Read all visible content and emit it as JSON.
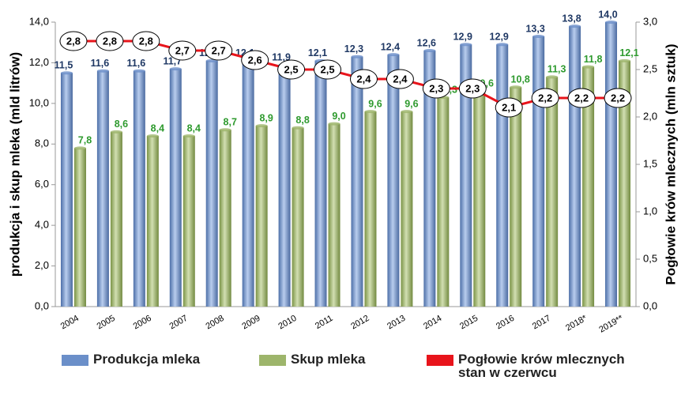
{
  "chart_data": {
    "type": "bar_line",
    "categories": [
      "2004",
      "2005",
      "2006",
      "2007",
      "2008",
      "2009",
      "2010",
      "2011",
      "2012",
      "2013",
      "2014",
      "2015",
      "2016",
      "2017",
      "2018*",
      "2019**"
    ],
    "series": [
      {
        "name": "Produkcja mleka",
        "color": "#6b8fc9",
        "type": "bar",
        "values": [
          11.5,
          11.6,
          11.6,
          11.7,
          12.1,
          12.1,
          11.9,
          12.1,
          12.3,
          12.4,
          12.6,
          12.9,
          12.9,
          13.3,
          13.8,
          14.0
        ],
        "value_labels": [
          "11,5",
          "11,6",
          "11,6",
          "11,7",
          "12,1",
          "12,1",
          "11,9",
          "12,1",
          "12,3",
          "12,4",
          "12,6",
          "12,9",
          "12,9",
          "13,3",
          "13,8",
          "14,0"
        ]
      },
      {
        "name": "Skup mleka",
        "color": "#9db56b",
        "type": "bar",
        "values": [
          7.8,
          8.6,
          8.4,
          8.4,
          8.7,
          8.9,
          8.8,
          9.0,
          9.6,
          9.6,
          10.3,
          10.6,
          10.8,
          11.3,
          11.8,
          12.1
        ],
        "value_labels": [
          "7,8",
          "8,6",
          "8,4",
          "8,4",
          "8,7",
          "8,9",
          "8,8",
          "9,0",
          "9,6",
          "9,6",
          "10,3",
          "10,6",
          "10,8",
          "11,3",
          "11,8",
          "12,1"
        ]
      },
      {
        "name": "Pogłowie krów mlecznych stan w czerwcu",
        "color": "#e8141b",
        "type": "line",
        "axis": "y2",
        "values": [
          2.8,
          2.8,
          2.8,
          2.7,
          2.7,
          2.6,
          2.5,
          2.5,
          2.4,
          2.4,
          2.3,
          2.3,
          2.1,
          2.2,
          2.2,
          2.2
        ],
        "value_labels": [
          "2,8",
          "2,8",
          "2,8",
          "2,7",
          "2,7",
          "2,6",
          "2,5",
          "2,5",
          "2,4",
          "2,4",
          "2,3",
          "2,3",
          "2,1",
          "2,2",
          "2,2",
          "2,2"
        ]
      }
    ],
    "y_label": "produkcja i skup mleka (mld litrów)",
    "y2_label": "Pogłowie krów mlecznych (mln sztuk)",
    "ylim": [
      0,
      14
    ],
    "yticks": [
      {
        "value": 0,
        "label": "0,0"
      },
      {
        "value": 2,
        "label": "2,0"
      },
      {
        "value": 4,
        "label": "4,0"
      },
      {
        "value": 6,
        "label": "6,0"
      },
      {
        "value": 8,
        "label": "8,0"
      },
      {
        "value": 10,
        "label": "10,0"
      },
      {
        "value": 12,
        "label": "12,0"
      },
      {
        "value": 14,
        "label": "14,0"
      }
    ],
    "y2lim": [
      0,
      3
    ],
    "y2ticks": [
      {
        "value": 0,
        "label": "0,0"
      },
      {
        "value": 0.5,
        "label": "0,5"
      },
      {
        "value": 1,
        "label": "1,0"
      },
      {
        "value": 1.5,
        "label": "1,5"
      },
      {
        "value": 2,
        "label": "2,0"
      },
      {
        "value": 2.5,
        "label": "2,5"
      },
      {
        "value": 3,
        "label": "3,0"
      }
    ],
    "grid": false,
    "legend": "bottom"
  }
}
